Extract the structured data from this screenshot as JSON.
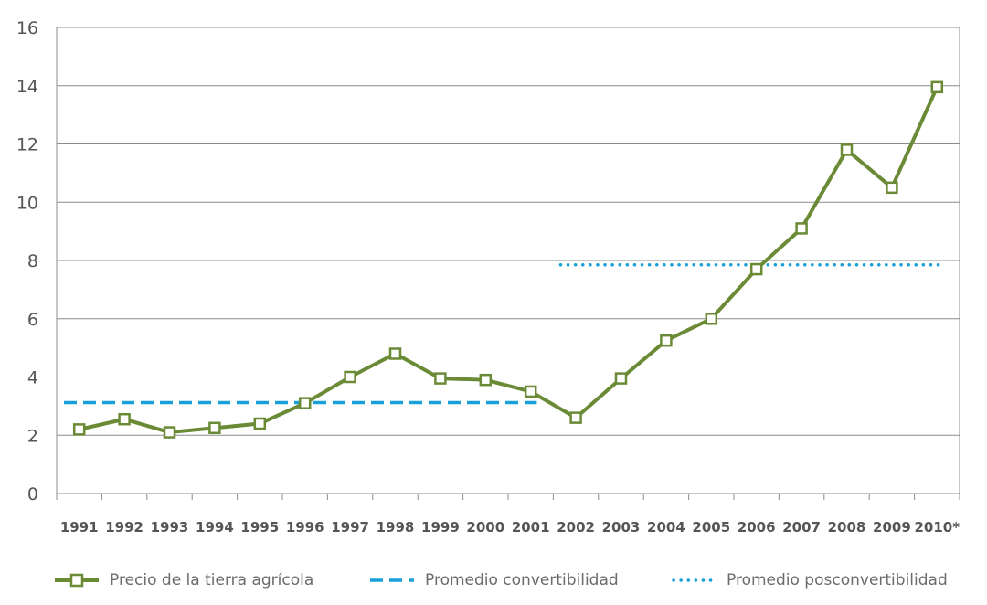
{
  "chart_data": {
    "type": "line",
    "categories": [
      "1991",
      "1992",
      "1993",
      "1994",
      "1995",
      "1996",
      "1997",
      "1998",
      "1999",
      "2000",
      "2001",
      "2002",
      "2003",
      "2004",
      "2005",
      "2006",
      "2007",
      "2008",
      "2009",
      "2010*"
    ],
    "series": [
      {
        "name": "Precio de la tierra agrícola",
        "color": "#6a8a36",
        "marker": "hollow-square",
        "values": [
          2.2,
          2.55,
          2.1,
          2.25,
          2.4,
          3.1,
          4.0,
          4.8,
          3.95,
          3.9,
          3.5,
          2.6,
          3.95,
          5.25,
          6.0,
          7.7,
          9.1,
          11.8,
          10.5,
          13.95
        ]
      },
      {
        "name": "Promedio convertibilidad",
        "color": "#1aa0d8",
        "style": "dashed",
        "start": "1991",
        "end": "2001",
        "value": 3.12
      },
      {
        "name": "Promedio posconvertibilidad",
        "color": "#1aa0d8",
        "style": "dotted",
        "start": "2002",
        "end": "2010*",
        "value": 7.85
      }
    ],
    "y_ticks": [
      0,
      2,
      4,
      6,
      8,
      10,
      12,
      14,
      16
    ],
    "ylim": [
      0,
      16
    ],
    "grid": "horizontal",
    "legend": "bottom"
  }
}
